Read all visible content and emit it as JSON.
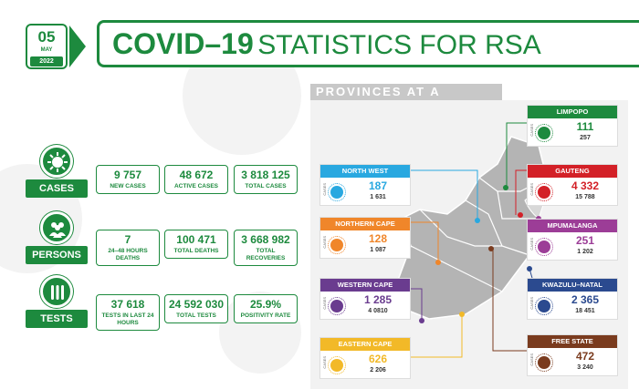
{
  "header": {
    "day": "05",
    "month": "MAY",
    "year": "2022",
    "title_main": "COVID–19",
    "title_rest": "STATISTICS FOR RSA"
  },
  "colors": {
    "brand_green": "#1d8a3e"
  },
  "categories": [
    {
      "label": "CASES",
      "icon": "virus-icon",
      "stats": [
        {
          "value": "9 757",
          "label": "NEW CASES"
        },
        {
          "value": "48 672",
          "label": "ACTIVE CASES"
        },
        {
          "value": "3 818 125",
          "label": "TOTAL CASES"
        }
      ]
    },
    {
      "label": "PERSONS",
      "icon": "people-icon",
      "stats": [
        {
          "value": "7",
          "label": "24–48 HOURS DEATHS"
        },
        {
          "value": "100 471",
          "label": "TOTAL DEATHS"
        },
        {
          "value": "3 668 982",
          "label": "TOTAL RECOVERIES"
        }
      ]
    },
    {
      "label": "TESTS",
      "icon": "test-tubes-icon",
      "stats": [
        {
          "value": "37 618",
          "label": "TESTS IN LAST 24 HOURS"
        },
        {
          "value": "24 592 030",
          "label": "TOTAL TESTS"
        },
        {
          "value": "25.9%",
          "label": "POSITIVITY RATE"
        }
      ]
    }
  ],
  "provinces": {
    "heading": "PROVINCES AT A GLANCE",
    "cases_word": "CASES",
    "items": [
      {
        "name": "LIMPOPO",
        "new": "111",
        "total": "257",
        "color": "#1d8a3e"
      },
      {
        "name": "GAUTENG",
        "new": "4 332",
        "total": "15 788",
        "color": "#d32027"
      },
      {
        "name": "MPUMALANGA",
        "new": "251",
        "total": "1 202",
        "color": "#9c3d97"
      },
      {
        "name": "KWAZULU–NATAL",
        "new": "2 365",
        "total": "18 451",
        "color": "#2b4a8f"
      },
      {
        "name": "FREE STATE",
        "new": "472",
        "total": "3 240",
        "color": "#7a3b1e"
      },
      {
        "name": "NORTH WEST",
        "new": "187",
        "total": "1 631",
        "color": "#29a8e0"
      },
      {
        "name": "NORTHERN CAPE",
        "new": "128",
        "total": "1 087",
        "color": "#f0862a"
      },
      {
        "name": "WESTERN CAPE",
        "new": "1 285",
        "total": "4 0810",
        "color": "#6a3c8f"
      },
      {
        "name": "EASTERN CAPE",
        "new": "626",
        "total": "2 206",
        "color": "#f2b928"
      }
    ]
  }
}
